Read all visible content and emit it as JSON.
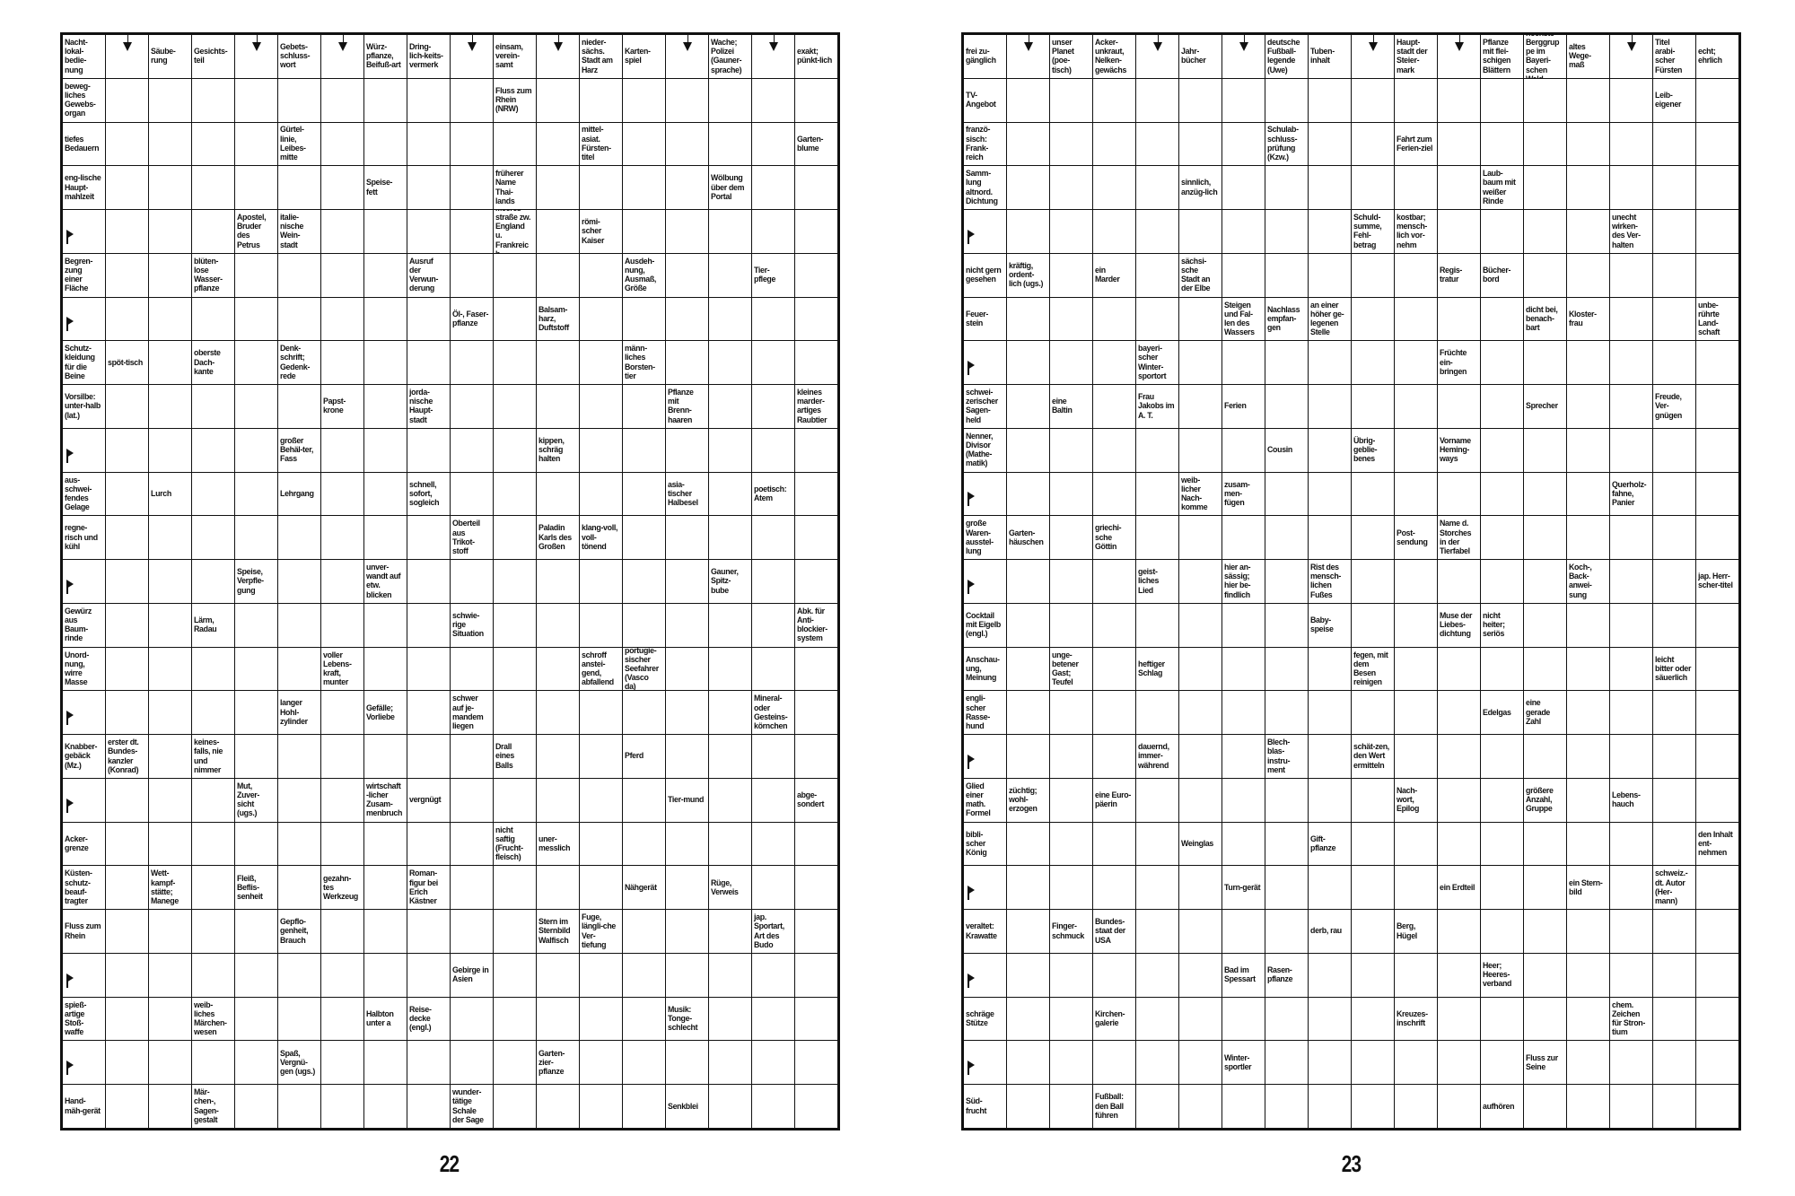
{
  "puzzle": {
    "type": "Schwedenrätsel",
    "rows": 25,
    "cols": 18
  },
  "pages": [
    {
      "page_number": "22",
      "arrow_only_cells": [
        [
          0,
          1
        ],
        [
          0,
          4
        ],
        [
          0,
          6
        ],
        [
          0,
          9
        ],
        [
          0,
          11
        ],
        [
          0,
          14
        ],
        [
          0,
          16
        ]
      ],
      "clues": [
        [
          0,
          0,
          "Nacht-lokal-bedie-nung"
        ],
        [
          0,
          2,
          "Säube-rung"
        ],
        [
          0,
          3,
          "Gesichts-teil"
        ],
        [
          0,
          5,
          "Gebets-schluss-wort"
        ],
        [
          0,
          7,
          "Würz-pflanze, Beifuß-art"
        ],
        [
          0,
          8,
          "Dring-lich-keits-vermerk"
        ],
        [
          0,
          10,
          "einsam, verein-samt"
        ],
        [
          0,
          12,
          "nieder-sächs. Stadt am Harz"
        ],
        [
          0,
          13,
          "Karten-spiel"
        ],
        [
          0,
          15,
          "Wache; Polizei (Gauner-sprache)"
        ],
        [
          0,
          17,
          "exakt; pünkt-lich"
        ],
        [
          1,
          0,
          "beweg-liches Gewebs-organ"
        ],
        [
          1,
          10,
          "Fluss zum Rhein (NRW)"
        ],
        [
          2,
          0,
          "tiefes Bedauern"
        ],
        [
          2,
          5,
          "Gürtel-linie, Leibes-mitte"
        ],
        [
          2,
          12,
          "mittel-asiat. Fürsten-titel"
        ],
        [
          2,
          17,
          "Garten-blume"
        ],
        [
          3,
          0,
          "eng-lische Haupt-mahlzeit"
        ],
        [
          3,
          7,
          "Speise-fett"
        ],
        [
          3,
          10,
          "früherer Name Thai-lands"
        ],
        [
          3,
          15,
          "Wölbung über dem Portal"
        ],
        [
          4,
          4,
          "Apostel, Bruder des Petrus"
        ],
        [
          4,
          5,
          "italie-nische Wein-stadt"
        ],
        [
          4,
          10,
          "Meeres-straße zw. England u. Frankreich"
        ],
        [
          4,
          12,
          "römi-scher Kaiser"
        ],
        [
          5,
          0,
          "Begren-zung einer Fläche"
        ],
        [
          5,
          3,
          "blüten-lose Wasser-pflanze"
        ],
        [
          5,
          8,
          "Ausruf der Verwun-derung"
        ],
        [
          5,
          13,
          "Ausdeh-nung, Ausmaß, Größe"
        ],
        [
          5,
          16,
          "Tier-pflege"
        ],
        [
          6,
          9,
          "Öl-, Faser-pflanze"
        ],
        [
          6,
          11,
          "Balsam-harz, Duftstoff"
        ],
        [
          7,
          0,
          "Schutz-kleidung für die Beine"
        ],
        [
          7,
          1,
          "spöt-tisch"
        ],
        [
          7,
          3,
          "oberste Dach-kante"
        ],
        [
          7,
          5,
          "Denk-schrift; Gedenk-rede"
        ],
        [
          7,
          13,
          "männ-liches Borsten-tier"
        ],
        [
          8,
          0,
          "Vorsilbe: unter-halb (lat.)"
        ],
        [
          8,
          6,
          "Papst-krone"
        ],
        [
          8,
          8,
          "jorda-nische Haupt-stadt"
        ],
        [
          8,
          14,
          "Pflanze mit Brenn-haaren"
        ],
        [
          8,
          17,
          "kleines marder-artiges Raubtier"
        ],
        [
          9,
          5,
          "großer Behäl-ter, Fass"
        ],
        [
          9,
          11,
          "kippen, schräg halten"
        ],
        [
          10,
          0,
          "aus-schwei-fendes Gelage"
        ],
        [
          10,
          2,
          "Lurch"
        ],
        [
          10,
          5,
          "Lehrgang"
        ],
        [
          10,
          8,
          "schnell, sofort, sogleich"
        ],
        [
          10,
          14,
          "asia-tischer Halbesel"
        ],
        [
          10,
          16,
          "poetisch: Atem"
        ],
        [
          11,
          0,
          "regne-risch und kühl"
        ],
        [
          11,
          9,
          "Oberteil aus Trikot-stoff"
        ],
        [
          11,
          11,
          "Paladin Karls des Großen"
        ],
        [
          11,
          12,
          "klang-voll, voll-tönend"
        ],
        [
          12,
          4,
          "Speise, Verpfle-gung"
        ],
        [
          12,
          7,
          "unver-wandt auf etw. blicken"
        ],
        [
          12,
          15,
          "Gauner, Spitz-bube"
        ],
        [
          13,
          0,
          "Gewürz aus Baum-rinde"
        ],
        [
          13,
          3,
          "Lärm, Radau"
        ],
        [
          13,
          9,
          "schwie-rige Situation"
        ],
        [
          13,
          17,
          "Abk. für Anti-blockier-system"
        ],
        [
          14,
          0,
          "Unord-nung, wirre Masse"
        ],
        [
          14,
          6,
          "voller Lebens-kraft, munter"
        ],
        [
          14,
          12,
          "schroff anstei-gend, abfallend"
        ],
        [
          14,
          13,
          "portugie-sischer Seefahrer (Vasco da)"
        ],
        [
          15,
          5,
          "langer Hohl-zylinder"
        ],
        [
          15,
          7,
          "Gefälle; Vorliebe"
        ],
        [
          15,
          9,
          "schwer auf je-mandem liegen"
        ],
        [
          15,
          16,
          "Mineral- oder Gesteins-körnchen"
        ],
        [
          16,
          0,
          "Knabber-gebäck (Mz.)"
        ],
        [
          16,
          1,
          "erster dt. Bundes-kanzler (Konrad)"
        ],
        [
          16,
          3,
          "keines-falls, nie und nimmer"
        ],
        [
          16,
          10,
          "Drall eines Balls"
        ],
        [
          16,
          13,
          "Pferd"
        ],
        [
          17,
          4,
          "Mut, Zuver-sicht (ugs.)"
        ],
        [
          17,
          7,
          "wirtschaft-licher Zusam-menbruch"
        ],
        [
          17,
          8,
          "vergnügt"
        ],
        [
          17,
          14,
          "Tier-mund"
        ],
        [
          17,
          17,
          "abge-sondert"
        ],
        [
          18,
          0,
          "Acker-grenze"
        ],
        [
          18,
          10,
          "nicht saftig (Frucht-fleisch)"
        ],
        [
          18,
          11,
          "uner-messlich"
        ],
        [
          19,
          0,
          "Küsten-schutz-beauf-tragter"
        ],
        [
          19,
          2,
          "Wett-kampf-stätte; Manege"
        ],
        [
          19,
          4,
          "Fleiß, Beflis-senheit"
        ],
        [
          19,
          6,
          "gezahn-tes Werkzeug"
        ],
        [
          19,
          8,
          "Roman-figur bei Erich Kästner"
        ],
        [
          19,
          13,
          "Nähgerät"
        ],
        [
          19,
          15,
          "Rüge, Verweis"
        ],
        [
          20,
          0,
          "Fluss zum Rhein"
        ],
        [
          20,
          5,
          "Gepflo-genheit, Brauch"
        ],
        [
          20,
          11,
          "Stern im Sternbild Walfisch"
        ],
        [
          20,
          12,
          "Fuge, längli-che Ver-tiefung"
        ],
        [
          20,
          16,
          "jap. Sportart, Art des Budo"
        ],
        [
          21,
          9,
          "Gebirge in Asien"
        ],
        [
          22,
          0,
          "spieß-artige Stoß-waffe"
        ],
        [
          22,
          3,
          "weib-liches Märchen-wesen"
        ],
        [
          22,
          7,
          "Halbton unter a"
        ],
        [
          22,
          8,
          "Reise-decke (engl.)"
        ],
        [
          22,
          14,
          "Musik: Tonge-schlecht"
        ],
        [
          23,
          5,
          "Spaß, Vergnü-gen (ugs.)"
        ],
        [
          23,
          11,
          "Garten-zier-pflanze"
        ],
        [
          24,
          0,
          "Hand-mäh-gerät"
        ],
        [
          24,
          3,
          "Mär-chen-, Sagen-gestalt"
        ],
        [
          24,
          9,
          "wunder-tätige Schale der Sage"
        ],
        [
          24,
          14,
          "Senkblei"
        ]
      ]
    },
    {
      "page_number": "23",
      "arrow_only_cells": [
        [
          0,
          1
        ],
        [
          0,
          4
        ],
        [
          0,
          6
        ],
        [
          0,
          9
        ],
        [
          0,
          11
        ],
        [
          0,
          15
        ]
      ],
      "clues": [
        [
          0,
          0,
          "frei zu-gänglich"
        ],
        [
          0,
          2,
          "unser Planet (poe-tisch)"
        ],
        [
          0,
          3,
          "Acker-unkraut, Nelken-gewächs"
        ],
        [
          0,
          5,
          "Jahr-bücher"
        ],
        [
          0,
          7,
          "deutsche Fußball-legende (Uwe)"
        ],
        [
          0,
          8,
          "Tuben-inhalt"
        ],
        [
          0,
          10,
          "Haupt-stadt der Steier-mark"
        ],
        [
          0,
          12,
          "Pflanze mit flei-schigen Blättern"
        ],
        [
          0,
          13,
          "höchste Berggruppe im Bayeri-schen Wald"
        ],
        [
          0,
          14,
          "altes Wege-maß"
        ],
        [
          0,
          16,
          "Titel arabi-scher Fürsten"
        ],
        [
          0,
          17,
          "echt; ehrlich"
        ],
        [
          1,
          0,
          "TV-Angebot"
        ],
        [
          1,
          16,
          "Leib-eigener"
        ],
        [
          2,
          0,
          "franzö-sisch: Frank-reich"
        ],
        [
          2,
          7,
          "Schulab-schluss-prüfung (Kzw.)"
        ],
        [
          2,
          10,
          "Fahrt zum Ferien-ziel"
        ],
        [
          3,
          0,
          "Samm-lung altnord. Dichtung"
        ],
        [
          3,
          5,
          "sinnlich, anzüg-lich"
        ],
        [
          3,
          12,
          "Laub-baum mit weißer Rinde"
        ],
        [
          4,
          9,
          "Schuld-summe, Fehl-betrag"
        ],
        [
          4,
          10,
          "kostbar; mensch-lich vor-nehm"
        ],
        [
          4,
          15,
          "unecht wirken-des Ver-halten"
        ],
        [
          5,
          0,
          "nicht gern gesehen"
        ],
        [
          5,
          1,
          "kräftig, ordent-lich (ugs.)"
        ],
        [
          5,
          3,
          "ein Marder"
        ],
        [
          5,
          5,
          "sächsi-sche Stadt an der Elbe"
        ],
        [
          5,
          11,
          "Regis-tratur"
        ],
        [
          5,
          12,
          "Bücher-bord"
        ],
        [
          6,
          0,
          "Feuer-stein"
        ],
        [
          6,
          6,
          "Steigen und Fal-len des Wassers"
        ],
        [
          6,
          7,
          "Nachlass empfan-gen"
        ],
        [
          6,
          8,
          "an einer höher ge-legenen Stelle"
        ],
        [
          6,
          13,
          "dicht bei, benach-bart"
        ],
        [
          6,
          14,
          "Kloster-frau"
        ],
        [
          6,
          17,
          "unbe-rührte Land-schaft"
        ],
        [
          7,
          4,
          "bayeri-scher Winter-sportort"
        ],
        [
          7,
          11,
          "Früchte ein-bringen"
        ],
        [
          8,
          0,
          "schwei-zerischer Sagen-held"
        ],
        [
          8,
          2,
          "eine Baltin"
        ],
        [
          8,
          4,
          "Frau Jakobs im A. T."
        ],
        [
          8,
          6,
          "Ferien"
        ],
        [
          8,
          13,
          "Sprecher"
        ],
        [
          8,
          16,
          "Freude, Ver-gnügen"
        ],
        [
          9,
          0,
          "Nenner, Divisor (Mathe-matik)"
        ],
        [
          9,
          7,
          "Cousin"
        ],
        [
          9,
          9,
          "Übrig-geblie-benes"
        ],
        [
          9,
          11,
          "Vorname Heming-ways"
        ],
        [
          10,
          5,
          "weib-licher Nach-komme"
        ],
        [
          10,
          6,
          "zusam-men-fügen"
        ],
        [
          10,
          15,
          "Querholz-fahne, Panier"
        ],
        [
          11,
          0,
          "große Waren-ausstel-lung"
        ],
        [
          11,
          1,
          "Garten-häuschen"
        ],
        [
          11,
          3,
          "griechi-sche Göttin"
        ],
        [
          11,
          10,
          "Post-sendung"
        ],
        [
          11,
          11,
          "Name d. Storches in der Tierfabel"
        ],
        [
          12,
          4,
          "geist-liches Lied"
        ],
        [
          12,
          6,
          "hier an-sässig; hier be-findlich"
        ],
        [
          12,
          8,
          "Rist des mensch-lichen Fußes"
        ],
        [
          12,
          14,
          "Koch-, Back-anwei-sung"
        ],
        [
          12,
          17,
          "jap. Herr-scher-titel"
        ],
        [
          13,
          0,
          "Cocktail mit Eigelb (engl.)"
        ],
        [
          13,
          8,
          "Baby-speise"
        ],
        [
          13,
          11,
          "Muse der Liebes-dichtung"
        ],
        [
          13,
          12,
          "nicht heiter; seriös"
        ],
        [
          14,
          0,
          "Anschau-ung, Meinung"
        ],
        [
          14,
          2,
          "unge-betener Gast; Teufel"
        ],
        [
          14,
          4,
          "heftiger Schlag"
        ],
        [
          14,
          9,
          "fegen, mit dem Besen reinigen"
        ],
        [
          14,
          16,
          "leicht bitter oder säuerlich"
        ],
        [
          15,
          0,
          "engli-scher Rasse-hund"
        ],
        [
          15,
          12,
          "Edelgas"
        ],
        [
          15,
          13,
          "eine gerade Zahl"
        ],
        [
          16,
          4,
          "dauernd, immer-während"
        ],
        [
          16,
          7,
          "Blech-blas-instru-ment"
        ],
        [
          16,
          9,
          "schät-zen, den Wert ermitteln"
        ],
        [
          17,
          0,
          "Glied einer math. Formel"
        ],
        [
          17,
          1,
          "züchtig; wohl-erzogen"
        ],
        [
          17,
          3,
          "eine Euro-päerin"
        ],
        [
          17,
          10,
          "Nach-wort, Epilog"
        ],
        [
          17,
          13,
          "größere Anzahl, Gruppe"
        ],
        [
          17,
          15,
          "Lebens-hauch"
        ],
        [
          18,
          0,
          "bibli-scher König"
        ],
        [
          18,
          5,
          "Weinglas"
        ],
        [
          18,
          8,
          "Gift-pflanze"
        ],
        [
          18,
          17,
          "den Inhalt ent-nehmen"
        ],
        [
          19,
          6,
          "Turn-gerät"
        ],
        [
          19,
          11,
          "ein Erdteil"
        ],
        [
          19,
          14,
          "ein Stern-bild"
        ],
        [
          19,
          16,
          "schweiz.-dt. Autor (Her-mann)"
        ],
        [
          20,
          0,
          "veraltet: Krawatte"
        ],
        [
          20,
          2,
          "Finger-schmuck"
        ],
        [
          20,
          3,
          "Bundes-staat der USA"
        ],
        [
          20,
          8,
          "derb, rau"
        ],
        [
          20,
          10,
          "Berg, Hügel"
        ],
        [
          21,
          6,
          "Bad im Spessart"
        ],
        [
          21,
          7,
          "Rasen-pflanze"
        ],
        [
          21,
          12,
          "Heer; Heeres-verband"
        ],
        [
          22,
          0,
          "schräge Stütze"
        ],
        [
          22,
          3,
          "Kirchen-galerie"
        ],
        [
          22,
          10,
          "Kreuzes-inschrift"
        ],
        [
          22,
          15,
          "chem. Zeichen für Stron-tium"
        ],
        [
          23,
          6,
          "Winter-sportler"
        ],
        [
          23,
          13,
          "Fluss zur Seine"
        ],
        [
          24,
          0,
          "Süd-frucht"
        ],
        [
          24,
          3,
          "Fußball: den Ball führen"
        ],
        [
          24,
          12,
          "aufhören"
        ]
      ]
    }
  ]
}
